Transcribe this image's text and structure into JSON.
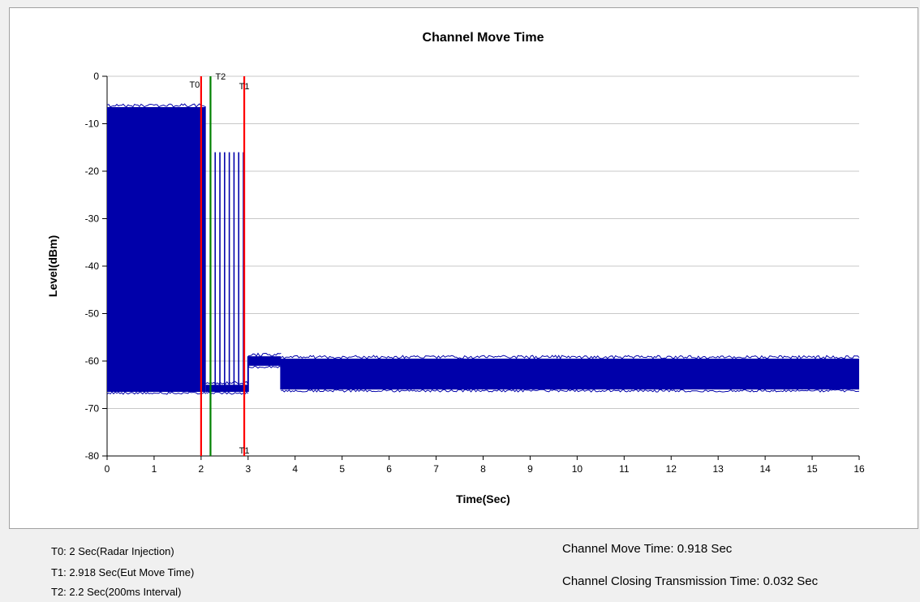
{
  "chart_data": {
    "type": "line",
    "title": "Channel Move Time",
    "xlabel": "Time(Sec)",
    "ylabel": "Level(dBm)",
    "xlim": [
      0,
      16
    ],
    "ylim": [
      -80,
      0
    ],
    "x_ticks": [
      "0",
      "1",
      "2",
      "3",
      "4",
      "5",
      "6",
      "7",
      "8",
      "9",
      "10",
      "11",
      "12",
      "13",
      "14",
      "15",
      "16"
    ],
    "y_ticks": [
      "0",
      "-10",
      "-20",
      "-30",
      "-40",
      "-50",
      "-60",
      "-70",
      "-80"
    ],
    "grid": "horizontal",
    "series_color": "#0000aa",
    "signal": {
      "segments": [
        {
          "x_start": 0.0,
          "x_end": 2.1,
          "y_top": -6.5,
          "y_bottom": -66.5
        },
        {
          "x_start": 2.1,
          "x_end": 3.0,
          "y_top": -65.0,
          "y_bottom": -66.5
        },
        {
          "x_start": 3.0,
          "x_end": 3.7,
          "y_top": -59.0,
          "y_bottom": -61.0
        },
        {
          "x_start": 3.7,
          "x_end": 16.0,
          "y_top": -59.5,
          "y_bottom": -66.0
        }
      ],
      "bursts": {
        "x": [
          2.3,
          2.4,
          2.5,
          2.6,
          2.7,
          2.8,
          2.9
        ],
        "y_top": -16,
        "y_bottom": -66.5
      }
    },
    "markers": [
      {
        "name": "T0",
        "x": 2.0,
        "color": "#ff0000",
        "label_pos": "top"
      },
      {
        "name": "T2",
        "x": 2.2,
        "color": "#008000",
        "label_pos": "top"
      },
      {
        "name": "T1",
        "x": 2.918,
        "color": "#ff0000",
        "label_pos": "top-and-bottom"
      }
    ]
  },
  "info": {
    "t0": "T0: 2 Sec(Radar Injection)",
    "t1": "T1: 2.918 Sec(Eut Move Time)",
    "t2": "T2: 2.2 Sec(200ms Interval)",
    "move_time": "Channel Move Time: 0.918 Sec",
    "closing_time": "Channel Closing Transmission Time: 0.032 Sec"
  }
}
